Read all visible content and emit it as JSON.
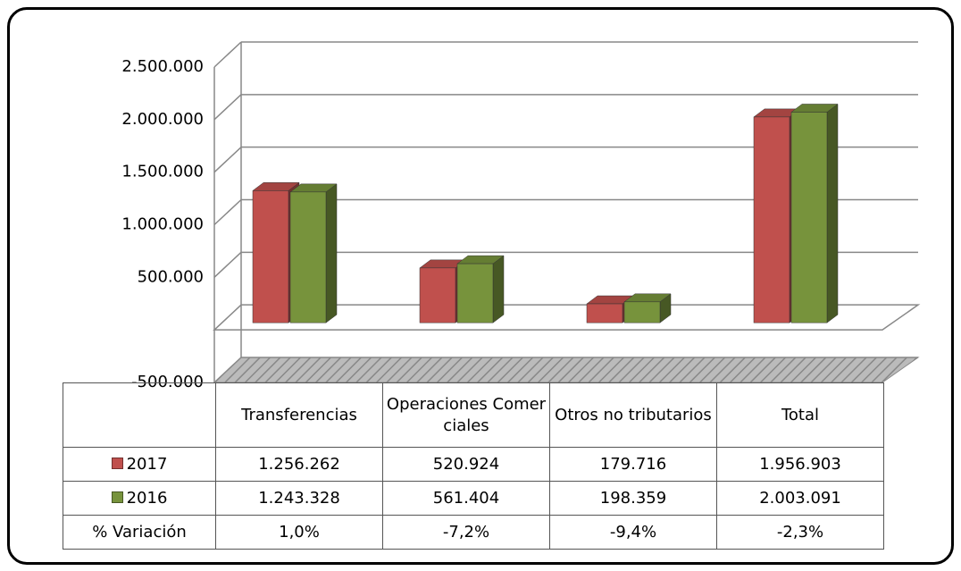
{
  "chart_data": {
    "type": "bar3d",
    "categories": [
      "Transferencias",
      "Operaciones Comerciales",
      "Otros no tributarios",
      "Total"
    ],
    "series": [
      {
        "name": "2017",
        "color": "#c0504d",
        "values": [
          1256262,
          520924,
          179716,
          1956903
        ],
        "value_labels": [
          "1.256.262",
          "520.924",
          "179.716",
          "1.956.903"
        ]
      },
      {
        "name": "2016",
        "color": "#77933c",
        "values": [
          1243328,
          561404,
          198359,
          2003091
        ],
        "value_labels": [
          "1.243.328",
          "561.404",
          "198.359",
          "2.003.091"
        ]
      }
    ],
    "variation": {
      "name": "% Variación",
      "values": [
        1.0,
        -7.2,
        -9.4,
        -2.3
      ],
      "value_labels": [
        "1,0%",
        "-7,2%",
        "-9,4%",
        "-2,3%"
      ]
    },
    "ylim": [
      -500000,
      2500000
    ],
    "yticks": [
      {
        "value": -500000,
        "label": "-500.000"
      },
      {
        "value": 500000,
        "label": "500.000"
      },
      {
        "value": 1000000,
        "label": "1.000.000"
      },
      {
        "value": 1500000,
        "label": "1.500.000"
      },
      {
        "value": 2000000,
        "label": "2.000.000"
      },
      {
        "value": 2500000,
        "label": "2.500.000"
      }
    ],
    "grid": true
  }
}
